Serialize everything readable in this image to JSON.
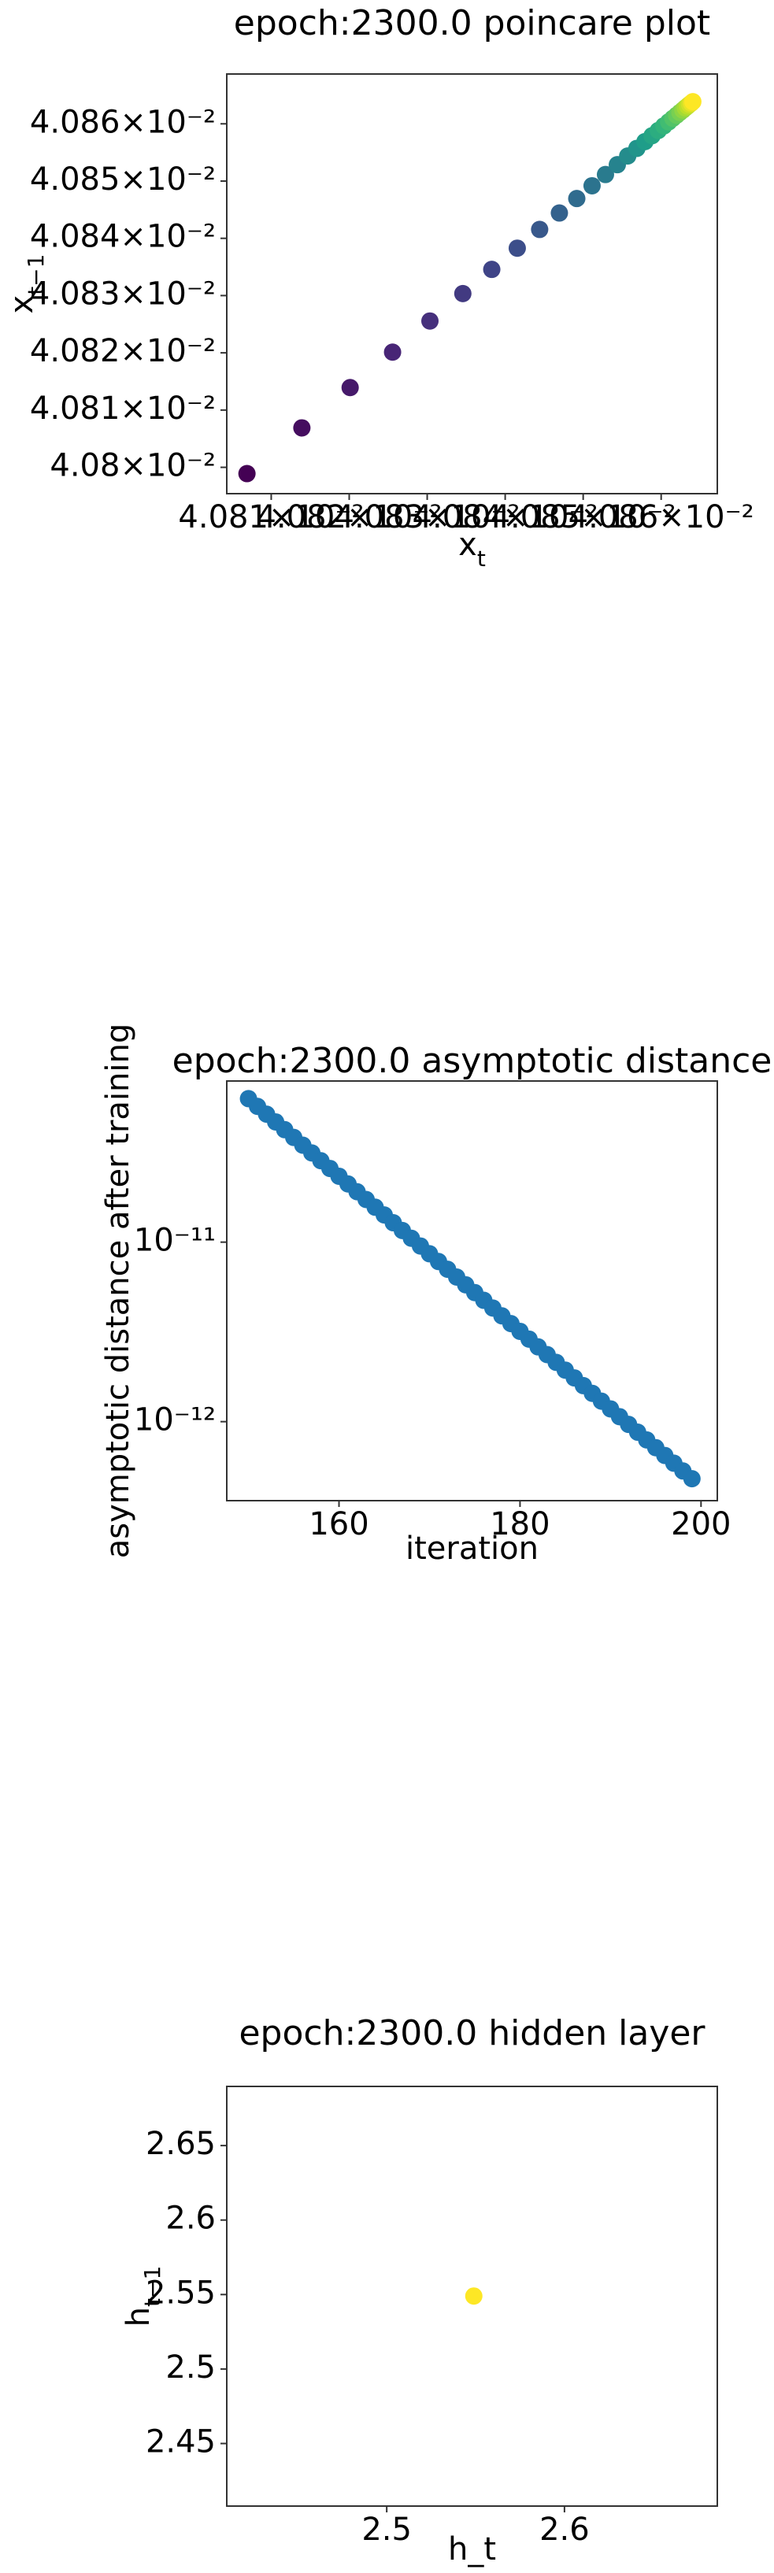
{
  "chart_data": [
    {
      "type": "scatter",
      "title": "epoch:2300.0 poincare plot",
      "xlabel": {
        "text": "x",
        "sub": "t"
      },
      "ylabel": {
        "text": "x",
        "sub": "t−1"
      },
      "x": [
        0.04080689,
        0.04081393,
        0.04082012,
        0.04082556,
        0.04083035,
        0.04083457,
        0.04083828,
        0.04084155,
        0.04084442,
        0.04084695,
        0.04084918,
        0.04085114,
        0.04085286,
        0.04085438,
        0.04085571,
        0.04085689,
        0.04085792,
        0.04085883,
        0.04085963,
        0.04086034,
        0.04086096,
        0.0408615,
        0.04086198,
        0.0408624,
        0.04086278,
        0.0408631,
        0.04086339,
        0.04086364,
        0.04086387,
        0.04086406
      ],
      "y": [
        0.0407989,
        0.04080689,
        0.04081393,
        0.04082012,
        0.04082556,
        0.04083035,
        0.04083457,
        0.04083828,
        0.04084155,
        0.04084442,
        0.04084695,
        0.04084918,
        0.04085114,
        0.04085286,
        0.04085438,
        0.04085571,
        0.04085689,
        0.04085792,
        0.04085883,
        0.04085963,
        0.04086034,
        0.04086096,
        0.0408615,
        0.04086198,
        0.0408624,
        0.04086278,
        0.0408631,
        0.04086339,
        0.04086364,
        0.04086387
      ],
      "colormap": "viridis",
      "xlim": [
        0.0408043,
        0.0408672
      ],
      "ylim": [
        0.0407954,
        0.0408687
      ],
      "xticks": [
        {
          "value": 0.04081,
          "label": "4.081×10⁻²"
        },
        {
          "value": 0.04082,
          "label": "4.082×10⁻²"
        },
        {
          "value": 0.04083,
          "label": "4.083×10⁻²"
        },
        {
          "value": 0.04084,
          "label": "4.084×10⁻²"
        },
        {
          "value": 0.04085,
          "label": "4.085×10⁻²"
        },
        {
          "value": 0.04086,
          "label": "4.086×10⁻²"
        }
      ],
      "yticks": [
        {
          "value": 0.0408,
          "label": "4.08×10⁻²"
        },
        {
          "value": 0.04081,
          "label": "4.081×10⁻²"
        },
        {
          "value": 0.04082,
          "label": "4.082×10⁻²"
        },
        {
          "value": 0.04083,
          "label": "4.083×10⁻²"
        },
        {
          "value": 0.04084,
          "label": "4.084×10⁻²"
        },
        {
          "value": 0.04085,
          "label": "4.085×10⁻²"
        },
        {
          "value": 0.04086,
          "label": "4.086×10⁻²"
        }
      ]
    },
    {
      "type": "scatter",
      "title": "epoch:2300.0 asymptotic distance",
      "xlabel": "iteration",
      "ylabel": "asymptotic distance after training",
      "x": [
        150,
        151,
        152,
        153,
        154,
        155,
        156,
        157,
        158,
        159,
        160,
        161,
        162,
        163,
        164,
        165,
        166,
        167,
        168,
        169,
        170,
        171,
        172,
        173,
        174,
        175,
        176,
        177,
        178,
        179,
        180,
        181,
        182,
        183,
        184,
        185,
        186,
        187,
        188,
        189,
        190,
        191,
        192,
        193,
        194,
        195,
        196,
        197,
        198,
        199
      ],
      "y": [
        6.3e-11,
        5.703e-11,
        5.163e-11,
        4.674e-11,
        4.232e-11,
        3.831e-11,
        3.468e-11,
        3.14e-11,
        2.842e-11,
        2.573e-11,
        2.329e-11,
        2.109e-11,
        1.909e-11,
        1.728e-11,
        1.565e-11,
        1.417e-11,
        1.282e-11,
        1.161e-11,
        1.051e-11,
        9.515e-12,
        8.614e-12,
        7.798e-12,
        7.06e-12,
        6.391e-12,
        5.786e-12,
        5.238e-12,
        4.742e-12,
        4.293e-12,
        3.886e-12,
        3.518e-12,
        3.185e-12,
        2.883e-12,
        2.61e-12,
        2.363e-12,
        2.139e-12,
        1.937e-12,
        1.753e-12,
        1.587e-12,
        1.437e-12,
        1.301e-12,
        1.178e-12,
        1.066e-12,
        9.651e-13,
        8.737e-13,
        7.91e-13,
        7.161e-13,
        6.483e-13,
        5.869e-13,
        5.313e-13,
        4.81e-13
      ],
      "color": "#1f77b4",
      "ylog": true,
      "xlim": [
        147.6,
        201.8
      ],
      "ylim": [
        3.63e-13,
        7.9e-11
      ],
      "xticks": [
        160,
        180,
        200
      ],
      "yticks": [
        {
          "value": 1e-11,
          "label": "10⁻¹¹"
        },
        {
          "value": 1e-12,
          "label": "10⁻¹²"
        }
      ]
    },
    {
      "type": "scatter",
      "title": "epoch:2300.0 hidden layer",
      "xlabel": "h_t",
      "ylabel": {
        "text": "h",
        "sub": "t−1"
      },
      "x": [
        2.549
      ],
      "y": [
        2.549
      ],
      "color": "#fde725",
      "xlim": [
        2.41,
        2.686
      ],
      "ylim": [
        2.408,
        2.6897
      ],
      "xticks": [
        2.5,
        2.6
      ],
      "yticks": [
        2.45,
        2.5,
        2.55,
        2.6,
        2.65
      ]
    }
  ]
}
